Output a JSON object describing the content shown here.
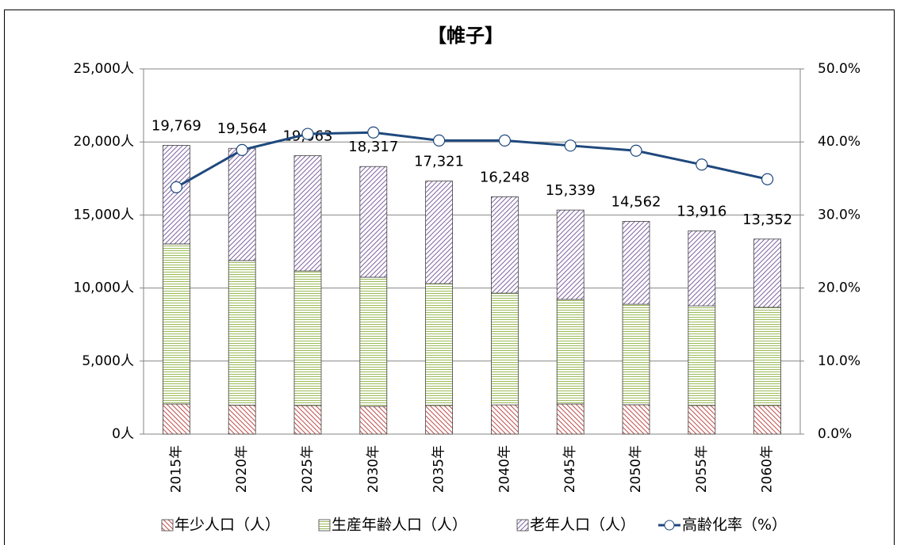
{
  "chart_data": {
    "type": "bar",
    "stacked": true,
    "title": "【帷子】",
    "categories": [
      "2015年",
      "2020年",
      "2025年",
      "2030年",
      "2035年",
      "2040年",
      "2045年",
      "2050年",
      "2055年",
      "2060年"
    ],
    "series": [
      {
        "name": "年少人口（人）",
        "color": "#c0504d",
        "pattern": "diagonal-down",
        "values": [
          2060,
          1980,
          1960,
          1900,
          1960,
          2000,
          2060,
          2010,
          1960,
          1960
        ]
      },
      {
        "name": "生産年齢人口（人）",
        "color": "#9bbb59",
        "pattern": "horizontal",
        "values": [
          10960,
          9900,
          9210,
          8840,
          8340,
          7650,
          7160,
          6880,
          6820,
          6720
        ]
      },
      {
        "name": "老年人口（人）",
        "color": "#8064a2",
        "pattern": "diagonal-up",
        "values": [
          6749,
          7684,
          7893,
          7577,
          7021,
          6598,
          6119,
          5672,
          5136,
          4672
        ]
      },
      {
        "name": "高齢化率（%）",
        "type": "line",
        "axis": "y2",
        "color": "#1f497d",
        "values": [
          33.8,
          38.9,
          41.1,
          41.3,
          40.2,
          40.2,
          39.5,
          38.8,
          36.9,
          34.9
        ]
      }
    ],
    "totals": [
      19769,
      19564,
      19063,
      18317,
      17321,
      16248,
      15339,
      14562,
      13916,
      13352
    ],
    "total_labels": [
      "19,769",
      "19,564",
      "19,063",
      "18,317",
      "17,321",
      "16,248",
      "15,339",
      "14,562",
      "13,916",
      "13,352"
    ],
    "ylim": [
      0,
      25000
    ],
    "yticks": [
      {
        "value": 0,
        "label": "0人"
      },
      {
        "value": 5000,
        "label": "5,000人"
      },
      {
        "value": 10000,
        "label": "10,000人"
      },
      {
        "value": 15000,
        "label": "15,000人"
      },
      {
        "value": 20000,
        "label": "20,000人"
      },
      {
        "value": 25000,
        "label": "25,000人"
      }
    ],
    "y2lim": [
      0,
      50
    ],
    "y2ticks": [
      {
        "value": 0,
        "label": "0.0%"
      },
      {
        "value": 10,
        "label": "10.0%"
      },
      {
        "value": 20,
        "label": "20.0%"
      },
      {
        "value": 30,
        "label": "30.0%"
      },
      {
        "value": 40,
        "label": "40.0%"
      },
      {
        "value": 50,
        "label": "50.0%"
      }
    ],
    "grid": true,
    "legend": "bottom"
  }
}
